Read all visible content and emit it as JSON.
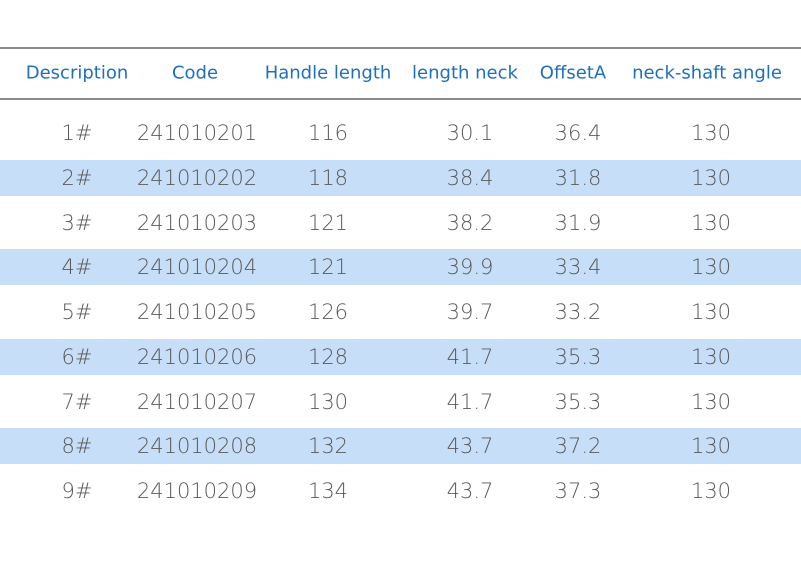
{
  "table": {
    "headers": [
      "Description",
      "Code",
      "Handle length",
      "length neck",
      "OffsetA",
      "neck-shaft angle"
    ],
    "rows": [
      [
        "1#",
        241010201,
        116,
        30.1,
        36.4,
        130
      ],
      [
        "2#",
        241010202,
        118,
        38.4,
        31.8,
        130
      ],
      [
        "3#",
        241010203,
        121,
        38.2,
        31.9,
        130
      ],
      [
        "4#",
        241010204,
        121,
        39.9,
        33.4,
        130
      ],
      [
        "5#",
        241010205,
        126,
        39.7,
        33.2,
        130
      ],
      [
        "6#",
        241010206,
        128,
        41.7,
        35.3,
        130
      ],
      [
        "7#",
        241010207,
        130,
        41.7,
        35.3,
        130
      ],
      [
        "8#",
        241010208,
        132,
        43.7,
        37.2,
        130
      ],
      [
        "9#",
        241010209,
        134,
        43.7,
        37.3,
        130
      ]
    ]
  }
}
